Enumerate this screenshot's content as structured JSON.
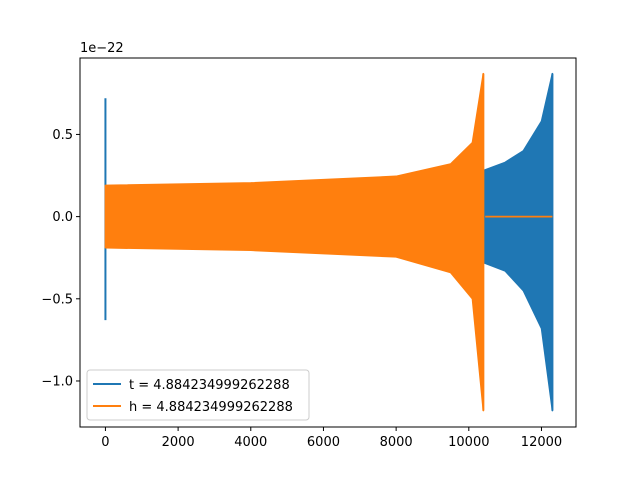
{
  "chart_data": {
    "type": "line",
    "title": "",
    "xlabel": "",
    "ylabel": "",
    "offset_label": "1e−22",
    "xlim": [
      -700,
      12950
    ],
    "ylim": [
      -1.28,
      0.965
    ],
    "xticks": [
      0,
      2000,
      4000,
      6000,
      8000,
      10000,
      12000
    ],
    "xtick_labels": [
      "0",
      "2000",
      "4000",
      "6000",
      "8000",
      "10000",
      "12000"
    ],
    "yticks": [
      -1.0,
      -0.5,
      0.0,
      0.5
    ],
    "ytick_labels": [
      "−1.0",
      "−0.5",
      "0.0",
      "0.5"
    ],
    "grid": false,
    "legend_position": "lower-left",
    "series": [
      {
        "name": "t = 4.884234999262288",
        "color": "#1f77b4",
        "values": [
          {
            "x": 0,
            "y_upper": 0.72,
            "y_lower": -0.63
          },
          {
            "x": 0,
            "y_upper": 0.19,
            "y_lower": -0.19
          },
          {
            "x": 10400,
            "y_upper": 0.28,
            "y_lower": -0.28
          },
          {
            "x": 11000,
            "y_upper": 0.33,
            "y_lower": -0.33
          },
          {
            "x": 11500,
            "y_upper": 0.4,
            "y_lower": -0.45
          },
          {
            "x": 12000,
            "y_upper": 0.58,
            "y_lower": -0.68
          },
          {
            "x": 12300,
            "y_upper": 0.87,
            "y_lower": -1.18
          }
        ]
      },
      {
        "name": "h = 4.884234999262288",
        "color": "#ff7f0e",
        "values": [
          {
            "x": 0,
            "y_upper": 0.19,
            "y_lower": -0.19
          },
          {
            "x": 4000,
            "y_upper": 0.205,
            "y_lower": -0.205
          },
          {
            "x": 8000,
            "y_upper": 0.245,
            "y_lower": -0.245
          },
          {
            "x": 9500,
            "y_upper": 0.32,
            "y_lower": -0.34
          },
          {
            "x": 10100,
            "y_upper": 0.45,
            "y_lower": -0.5
          },
          {
            "x": 10400,
            "y_upper": 0.87,
            "y_lower": -1.18
          },
          {
            "x": 10450,
            "y_upper": 0.0,
            "y_lower": 0.0
          },
          {
            "x": 12300,
            "y_upper": 0.0,
            "y_lower": 0.0
          }
        ]
      }
    ]
  }
}
